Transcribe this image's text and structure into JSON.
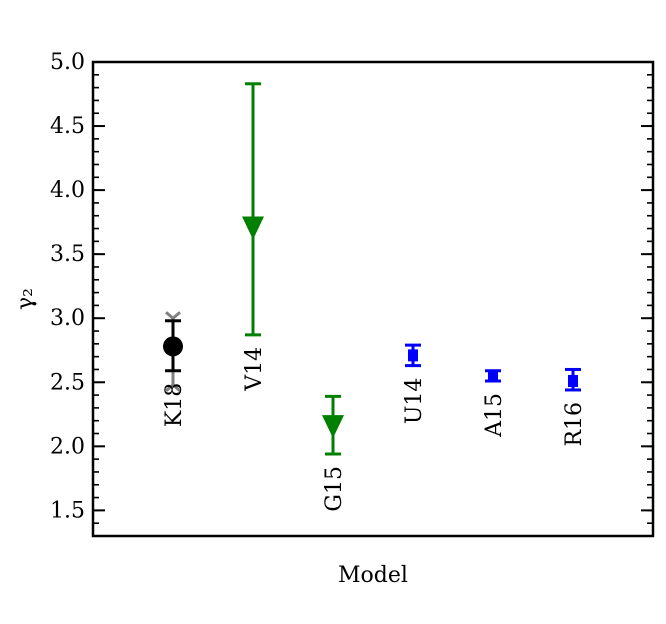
{
  "chart_data": {
    "type": "scatter",
    "title": "",
    "xlabel": "Model",
    "ylabel": "γ₂",
    "ylim": [
      1.3,
      5.0
    ],
    "yticks": [
      "1.5",
      "2.0",
      "2.5",
      "3.0",
      "3.5",
      "4.0",
      "4.5",
      "5.0"
    ],
    "grid": false,
    "legend": "none",
    "points": [
      {
        "label": "K18",
        "y": 2.78,
        "err_low": 2.59,
        "err_high": 2.98,
        "marker": "circle",
        "color": "#000000",
        "alt_err_low": 2.48,
        "alt_err_high": 3.0,
        "alt_color": "#808080"
      },
      {
        "label": "V14",
        "y": 3.7,
        "err_low": 2.87,
        "err_high": 4.83,
        "marker": "triangle-down",
        "color": "#008000"
      },
      {
        "label": "G15",
        "y": 2.15,
        "err_low": 1.94,
        "err_high": 2.39,
        "marker": "triangle-down",
        "color": "#008000"
      },
      {
        "label": "U14",
        "y": 2.71,
        "err_low": 2.63,
        "err_high": 2.79,
        "marker": "square",
        "color": "#0000ff"
      },
      {
        "label": "A15",
        "y": 2.55,
        "err_low": 2.51,
        "err_high": 2.59,
        "marker": "square",
        "color": "#0000ff"
      },
      {
        "label": "R16",
        "y": 2.51,
        "err_low": 2.44,
        "err_high": 2.6,
        "marker": "square",
        "color": "#0000ff"
      }
    ]
  }
}
